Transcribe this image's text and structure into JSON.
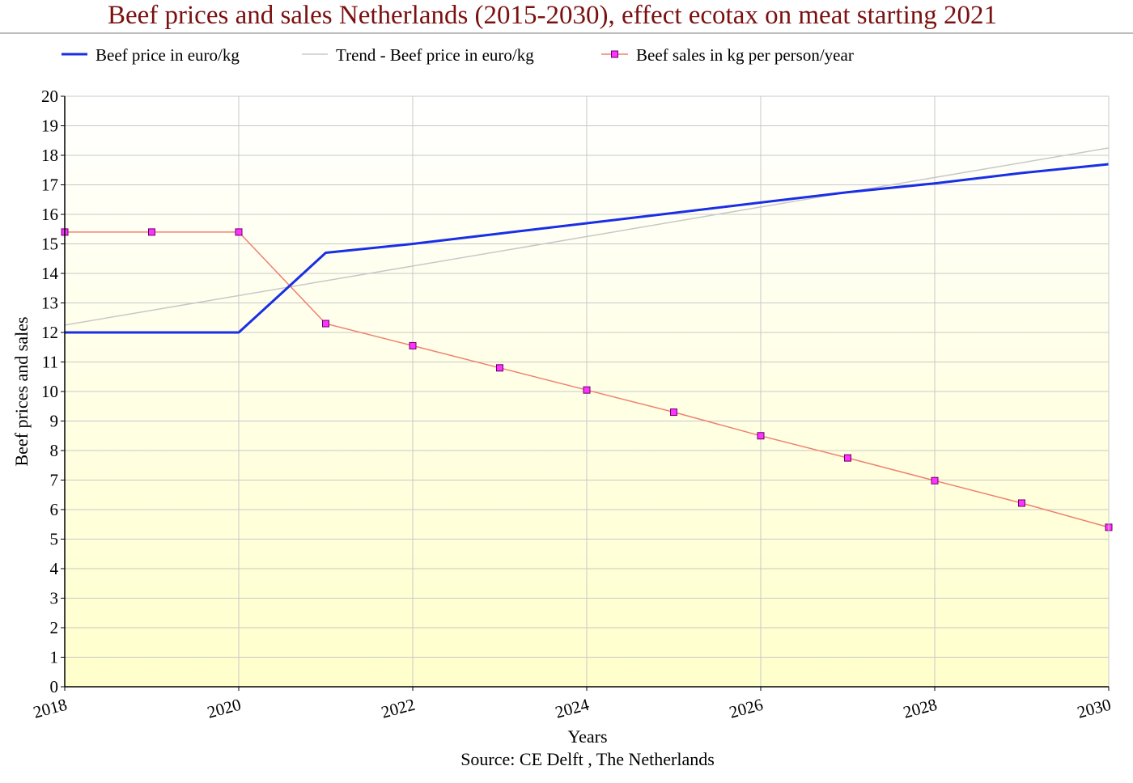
{
  "title": "Beef prices and sales Netherlands (2015-2030), effect ecotax on meat starting 2021",
  "source": "Source: CE Delft , The Netherlands",
  "colors": {
    "title": "#7a1010",
    "price": "#1a2ee6",
    "trend": "#c8c8c8",
    "sales_line": "#f08070",
    "sales_marker": "#ff33ff",
    "plot_bg_top": "#ffffff",
    "plot_bg_bottom": "#ffffcc",
    "grid": "#c8c8c8"
  },
  "chart_data": {
    "type": "line",
    "xlabel": "Years",
    "ylabel": "Beef prices and sales",
    "xlim": [
      2018,
      2030
    ],
    "ylim": [
      0,
      20
    ],
    "x_ticks": [
      "2018",
      "2020",
      "2022",
      "2024",
      "2026",
      "2028",
      "2030"
    ],
    "y_ticks": [
      "0",
      "1",
      "2",
      "3",
      "4",
      "5",
      "6",
      "7",
      "8",
      "9",
      "10",
      "11",
      "12",
      "13",
      "14",
      "15",
      "16",
      "17",
      "18",
      "19",
      "20"
    ],
    "grid": true,
    "legend_position": "top",
    "series": [
      {
        "name": "Beef price in euro/kg",
        "x": [
          2018,
          2019,
          2020,
          2021,
          2022,
          2023,
          2024,
          2025,
          2026,
          2027,
          2028,
          2029,
          2030
        ],
        "values": [
          12.0,
          12.0,
          12.0,
          14.7,
          15.0,
          15.35,
          15.7,
          16.05,
          16.4,
          16.75,
          17.05,
          17.4,
          17.7
        ]
      },
      {
        "name": "Trend - Beef price in euro/kg",
        "x": [
          2018,
          2030
        ],
        "values": [
          12.25,
          18.25
        ]
      },
      {
        "name": "Beef sales in kg per person/year",
        "x": [
          2018,
          2019,
          2020,
          2021,
          2022,
          2023,
          2024,
          2025,
          2026,
          2027,
          2028,
          2029,
          2030
        ],
        "values": [
          15.4,
          15.4,
          15.4,
          12.3,
          11.55,
          10.8,
          10.05,
          9.3,
          8.5,
          7.75,
          6.98,
          6.22,
          5.4
        ]
      }
    ]
  }
}
